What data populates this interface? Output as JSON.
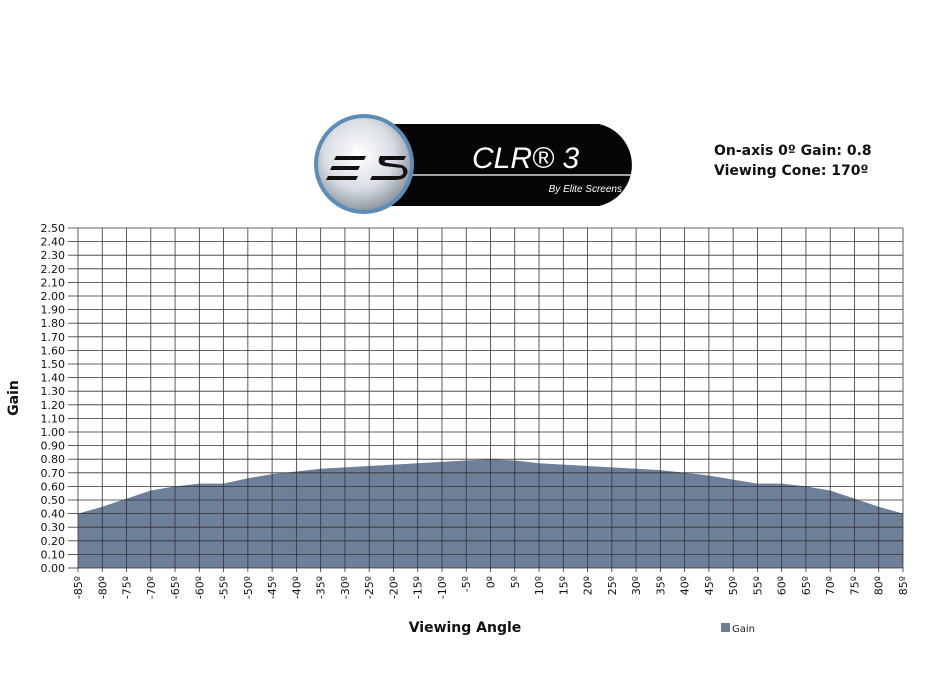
{
  "header": {
    "logo_mark": "ES",
    "product_name": "CLR® 3",
    "product_byline": "By Elite Screens",
    "spec_gain": "On-axis 0º Gain: 0.8",
    "spec_cone": "Viewing Cone: 170º"
  },
  "chart_data": {
    "type": "area",
    "title": "",
    "xlabel": "Viewing Angle",
    "ylabel": "Gain",
    "xlim": [
      -85,
      85
    ],
    "ylim": [
      0,
      2.5
    ],
    "grid": true,
    "legend": "bottom-right",
    "x": [
      -85,
      -80,
      -75,
      -70,
      -65,
      -60,
      -55,
      -50,
      -45,
      -40,
      -35,
      -30,
      -25,
      -20,
      -15,
      -10,
      -5,
      0,
      5,
      10,
      15,
      20,
      25,
      30,
      35,
      40,
      45,
      50,
      55,
      60,
      65,
      70,
      75,
      80,
      85
    ],
    "x_tick_labels": [
      "-85º",
      "-80º",
      "-75º",
      "-70º",
      "-65º",
      "-60º",
      "-55º",
      "-50º",
      "-45º",
      "-40º",
      "-35º",
      "-30º",
      "-25º",
      "-20º",
      "-15º",
      "-10º",
      "-5º",
      "0º",
      "5º",
      "10º",
      "15º",
      "20º",
      "25º",
      "30º",
      "35º",
      "40º",
      "45º",
      "50º",
      "55º",
      "60º",
      "65º",
      "70º",
      "75º",
      "80º",
      "85º"
    ],
    "y_tick_labels": [
      "0.00",
      "0.10",
      "0.20",
      "0.30",
      "0.40",
      "0.50",
      "0.60",
      "0.70",
      "0.80",
      "0.90",
      "1.00",
      "1.10",
      "1.20",
      "1.30",
      "1.40",
      "1.50",
      "1.60",
      "1.70",
      "1.80",
      "1.90",
      "2.00",
      "2.10",
      "2.20",
      "2.30",
      "2.40",
      "2.50"
    ],
    "series": [
      {
        "name": "Gain",
        "color": "#6e7f99",
        "values": [
          0.4,
          0.45,
          0.51,
          0.57,
          0.6,
          0.62,
          0.62,
          0.66,
          0.69,
          0.71,
          0.73,
          0.74,
          0.75,
          0.76,
          0.77,
          0.78,
          0.79,
          0.8,
          0.79,
          0.77,
          0.76,
          0.75,
          0.74,
          0.73,
          0.72,
          0.7,
          0.68,
          0.65,
          0.62,
          0.62,
          0.6,
          0.57,
          0.51,
          0.45,
          0.4
        ]
      }
    ]
  }
}
